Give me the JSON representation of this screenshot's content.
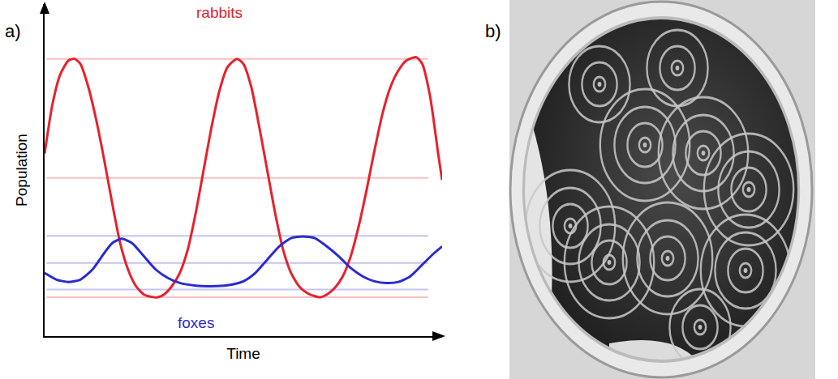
{
  "panel_labels": [
    "a)",
    "b)"
  ],
  "chart_data": {
    "type": "line",
    "x_label": "Time",
    "y_label": "Population",
    "tick_labels": false,
    "grid": false,
    "xlim": [
      0,
      100
    ],
    "ylim": [
      0,
      100
    ],
    "xticks": [],
    "yticks": [],
    "series": [
      {
        "name": "rabbits",
        "color": "#e8212b",
        "x": [
          0,
          2,
          4,
          6,
          7.5,
          9,
          11,
          13,
          15,
          17,
          19,
          21,
          23,
          25,
          27,
          28.5,
          30,
          32,
          34,
          36,
          38,
          40,
          42,
          44,
          46,
          48.4,
          50,
          52,
          54,
          56,
          58,
          60,
          62,
          64,
          66,
          68,
          69.4,
          71,
          73,
          75,
          77,
          79,
          81,
          83,
          85,
          87,
          89,
          91,
          93.5,
          95,
          97,
          99,
          100
        ],
        "values": [
          55,
          70,
          79,
          83,
          83.5,
          82,
          75,
          65,
          53,
          40,
          28,
          20,
          15,
          12.5,
          11.8,
          11.7,
          12.5,
          15,
          19,
          26,
          37,
          50,
          63,
          74,
          81,
          83.5,
          82,
          75,
          63,
          50,
          37,
          26,
          19,
          15,
          13,
          12,
          11.7,
          12.5,
          14.5,
          18,
          24,
          33,
          44,
          56,
          67,
          75,
          80,
          83,
          84,
          82,
          72,
          55,
          47
        ],
        "levels": [
          83.5,
          47.6,
          11.7
        ],
        "label_at": [
          44,
          97.5
        ]
      },
      {
        "name": "foxes",
        "color": "#2b2bd0",
        "x": [
          0,
          3,
          6,
          9,
          12,
          15,
          17,
          19.4,
          22,
          25,
          28,
          31,
          34,
          38,
          42,
          46,
          50,
          53,
          56,
          59,
          62,
          65,
          68,
          71,
          74,
          77,
          80,
          83,
          86,
          89,
          92,
          95,
          98,
          100
        ],
        "values": [
          19,
          17,
          16.3,
          17,
          20,
          25,
          28,
          29.3,
          28,
          24,
          20,
          17.5,
          16,
          15.2,
          15,
          15.3,
          16.5,
          19,
          23,
          27,
          29.5,
          30,
          29.5,
          27,
          24,
          20.5,
          18,
          16.5,
          16,
          16.3,
          18,
          21.5,
          25,
          27
        ],
        "levels": [
          30.2,
          22,
          14
        ],
        "label_at": [
          38,
          4
        ]
      }
    ]
  }
}
